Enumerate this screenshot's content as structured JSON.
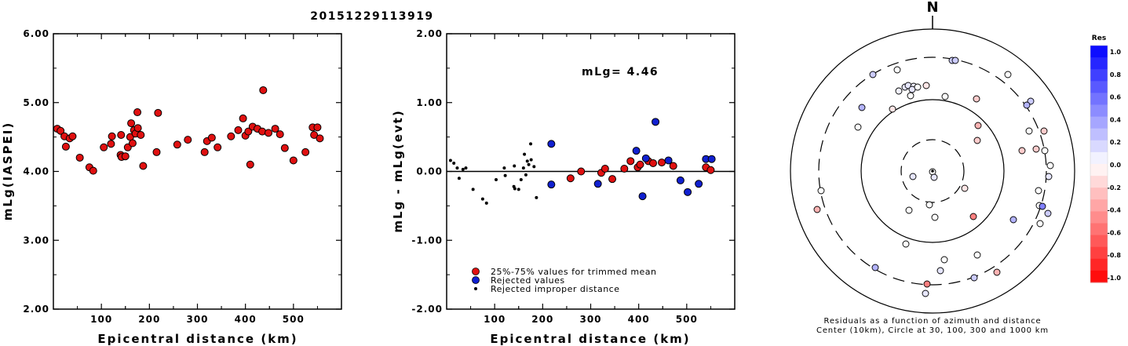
{
  "title": "20151229113919",
  "chart_data": [
    {
      "type": "scatter",
      "name": "left",
      "xlabel": "Epicentral distance (km)",
      "ylabel": "mLg(IASPEI)",
      "xlim": [
        0,
        600
      ],
      "ylim": [
        2.0,
        6.0
      ],
      "xticks": [
        100,
        200,
        300,
        400,
        500
      ],
      "yticks": [
        "2.00",
        "3.00",
        "4.00",
        "5.00",
        "6.00"
      ],
      "points": [
        [
          8,
          4.62
        ],
        [
          15,
          4.59
        ],
        [
          23,
          4.51
        ],
        [
          26,
          4.36
        ],
        [
          34,
          4.48
        ],
        [
          40,
          4.51
        ],
        [
          55,
          4.2
        ],
        [
          75,
          4.06
        ],
        [
          83,
          4.01
        ],
        [
          105,
          4.35
        ],
        [
          120,
          4.4
        ],
        [
          122,
          4.51
        ],
        [
          140,
          4.24
        ],
        [
          141,
          4.53
        ],
        [
          142,
          4.21
        ],
        [
          150,
          4.22
        ],
        [
          155,
          4.35
        ],
        [
          160,
          4.5
        ],
        [
          162,
          4.7
        ],
        [
          165,
          4.41
        ],
        [
          168,
          4.6
        ],
        [
          171,
          4.55
        ],
        [
          175,
          4.86
        ],
        [
          176,
          4.63
        ],
        [
          182,
          4.53
        ],
        [
          187,
          4.08
        ],
        [
          215,
          4.28
        ],
        [
          218,
          4.85
        ],
        [
          258,
          4.39
        ],
        [
          280,
          4.46
        ],
        [
          315,
          4.28
        ],
        [
          320,
          4.44
        ],
        [
          330,
          4.49
        ],
        [
          342,
          4.35
        ],
        [
          370,
          4.51
        ],
        [
          385,
          4.6
        ],
        [
          395,
          4.77
        ],
        [
          400,
          4.52
        ],
        [
          406,
          4.58
        ],
        [
          410,
          4.1
        ],
        [
          415,
          4.65
        ],
        [
          425,
          4.62
        ],
        [
          435,
          4.58
        ],
        [
          437,
          5.18
        ],
        [
          448,
          4.56
        ],
        [
          462,
          4.62
        ],
        [
          472,
          4.54
        ],
        [
          482,
          4.34
        ],
        [
          500,
          4.16
        ],
        [
          525,
          4.28
        ],
        [
          540,
          4.64
        ],
        [
          543,
          4.53
        ],
        [
          550,
          4.64
        ],
        [
          555,
          4.48
        ]
      ]
    },
    {
      "type": "scatter",
      "name": "middle",
      "xlabel": "Epicentral distance (km)",
      "ylabel": "mLg - mLg(evt)",
      "xlim": [
        0,
        600
      ],
      "ylim": [
        -2.0,
        2.0
      ],
      "xticks": [
        100,
        200,
        300,
        400,
        500
      ],
      "yticks": [
        "-2.00",
        "-1.00",
        "0.00",
        "1.00",
        "2.00"
      ],
      "annotation": "mLg= 4.46",
      "legend": [
        {
          "label": "25%-75% values for trimmed mean",
          "color": "#e01010",
          "size": "large"
        },
        {
          "label": "Rejected values",
          "color": "#1020d0",
          "size": "large"
        },
        {
          "label": "Rejected improper distance",
          "color": "#000000",
          "size": "small"
        }
      ],
      "series": [
        {
          "kind": "trimmed",
          "points": [
            [
              258,
              -0.1
            ],
            [
              280,
              0.0
            ],
            [
              322,
              -0.02
            ],
            [
              330,
              0.04
            ],
            [
              345,
              -0.11
            ],
            [
              370,
              0.04
            ],
            [
              383,
              0.15
            ],
            [
              398,
              0.06
            ],
            [
              403,
              0.1
            ],
            [
              420,
              0.15
            ],
            [
              430,
              0.12
            ],
            [
              448,
              0.13
            ],
            [
              472,
              0.08
            ],
            [
              540,
              0.06
            ],
            [
              550,
              0.02
            ]
          ]
        },
        {
          "kind": "rejected",
          "points": [
            [
              218,
              0.4
            ],
            [
              218,
              -0.19
            ],
            [
              315,
              -0.18
            ],
            [
              395,
              0.3
            ],
            [
              408,
              -0.36
            ],
            [
              415,
              0.19
            ],
            [
              435,
              0.72
            ],
            [
              462,
              0.16
            ],
            [
              487,
              -0.13
            ],
            [
              502,
              -0.3
            ],
            [
              525,
              -0.18
            ],
            [
              540,
              0.18
            ],
            [
              552,
              0.18
            ]
          ]
        },
        {
          "kind": "improper",
          "points": [
            [
              8,
              0.16
            ],
            [
              15,
              0.12
            ],
            [
              22,
              0.05
            ],
            [
              26,
              -0.1
            ],
            [
              34,
              0.03
            ],
            [
              40,
              0.05
            ],
            [
              55,
              -0.26
            ],
            [
              75,
              -0.4
            ],
            [
              83,
              -0.46
            ],
            [
              103,
              -0.12
            ],
            [
              120,
              0.05
            ],
            [
              122,
              -0.06
            ],
            [
              140,
              -0.22
            ],
            [
              141,
              0.08
            ],
            [
              142,
              -0.25
            ],
            [
              150,
              -0.26
            ],
            [
              155,
              -0.12
            ],
            [
              160,
              0.05
            ],
            [
              162,
              0.25
            ],
            [
              165,
              -0.05
            ],
            [
              168,
              0.15
            ],
            [
              171,
              0.1
            ],
            [
              175,
              0.4
            ],
            [
              176,
              0.17
            ],
            [
              182,
              0.07
            ],
            [
              187,
              -0.38
            ]
          ]
        }
      ]
    },
    {
      "type": "polar",
      "name": "right",
      "north_label": "N",
      "caption_line1": "Residuals as a function of azimuth and distance",
      "caption_line2": "Center (10km), Circle at 30, 100, 300 and 1000 km",
      "colorbar": {
        "title": "Res",
        "labels": [
          "1.0",
          "0.8",
          "0.6",
          "0.4",
          "0.2",
          "0.0",
          "-0.2",
          "-0.4",
          "-0.6",
          "-0.8",
          "-1.0"
        ]
      },
      "stations": [
        [
          1188,
          219,
          0.0
        ],
        [
          1163,
          225,
          0.1
        ],
        [
          1190,
          226,
          0.1
        ],
        [
          1213,
          77,
          0.2
        ],
        [
          1217,
          77,
          0.2
        ],
        [
          1112,
          95,
          0.2
        ],
        [
          1143,
          89,
          0.0
        ],
        [
          1098,
          137,
          0.3
        ],
        [
          1145,
          116,
          0.05
        ],
        [
          1153,
          111,
          0.1
        ],
        [
          1157,
          109,
          0.1
        ],
        [
          1164,
          110,
          0.05
        ],
        [
          1162,
          114,
          0.1
        ],
        [
          1169,
          111,
          0.0
        ],
        [
          1160,
          122,
          0.0
        ],
        [
          1180,
          109,
          -0.1
        ],
        [
          1137,
          139,
          -0.1
        ],
        [
          1284,
          95,
          0.0
        ],
        [
          1313,
          129,
          0.2
        ],
        [
          1308,
          134,
          0.3
        ],
        [
          1204,
          123,
          0.0
        ],
        [
          1244,
          126,
          -0.2
        ],
        [
          1093,
          162,
          0.0
        ],
        [
          1246,
          160,
          -0.3
        ],
        [
          1245,
          179,
          -0.2
        ],
        [
          1302,
          192,
          -0.2
        ],
        [
          1320,
          190,
          -0.2
        ],
        [
          1330,
          167,
          -0.2
        ],
        [
          1311,
          167,
          0.0
        ],
        [
          1338,
          211,
          0.0
        ],
        [
          1331,
          192,
          0.0
        ],
        [
          1336,
          225,
          0.1
        ],
        [
          1323,
          243,
          0.0
        ],
        [
          1324,
          262,
          0.0
        ],
        [
          1328,
          263,
          0.5
        ],
        [
          1335,
          272,
          0.2
        ],
        [
          1291,
          280,
          0.3
        ],
        [
          1325,
          285,
          0.0
        ],
        [
          1046,
          243,
          0.0
        ],
        [
          1041,
          267,
          -0.3
        ],
        [
          1229,
          240,
          -0.1
        ],
        [
          1158,
          268,
          0.0
        ],
        [
          1184,
          261,
          0.0
        ],
        [
          1191,
          277,
          0.0
        ],
        [
          1240,
          276,
          -0.5
        ],
        [
          1154,
          311,
          0.0
        ],
        [
          1203,
          331,
          0.0
        ],
        [
          1245,
          325,
          0.0
        ],
        [
          1115,
          341,
          0.3
        ],
        [
          1198,
          345,
          0.1
        ],
        [
          1241,
          354,
          0.2
        ],
        [
          1270,
          347,
          -0.3
        ],
        [
          1181,
          362,
          -0.5
        ],
        [
          1179,
          374,
          0.1
        ]
      ]
    }
  ]
}
